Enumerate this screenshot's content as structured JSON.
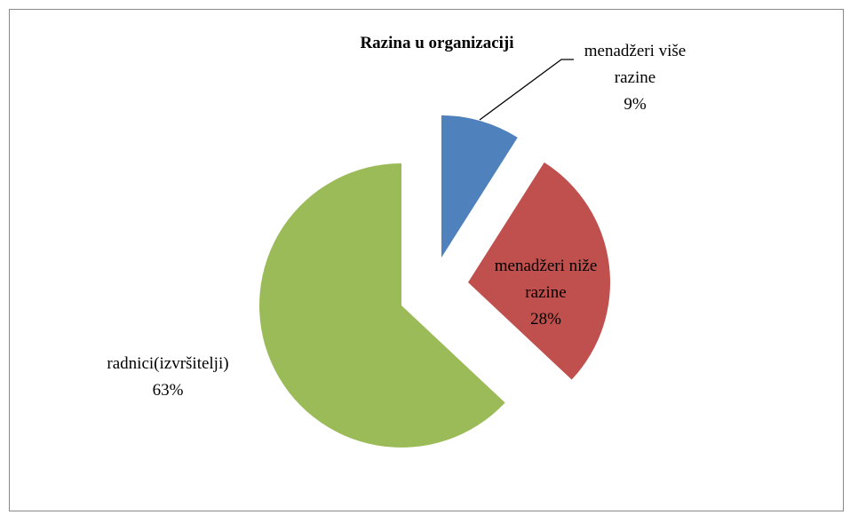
{
  "chart_data": {
    "type": "pie",
    "title": "Razina u organizaciji",
    "categories": [
      "menadžeri više razine",
      "menadžeri niže razine",
      "radnici(izvršitelji)"
    ],
    "values": [
      9,
      28,
      63
    ],
    "value_labels": [
      "9%",
      "28%",
      "63%"
    ],
    "colors": [
      "#4f81bd",
      "#c0504d",
      "#9bbb59"
    ]
  }
}
